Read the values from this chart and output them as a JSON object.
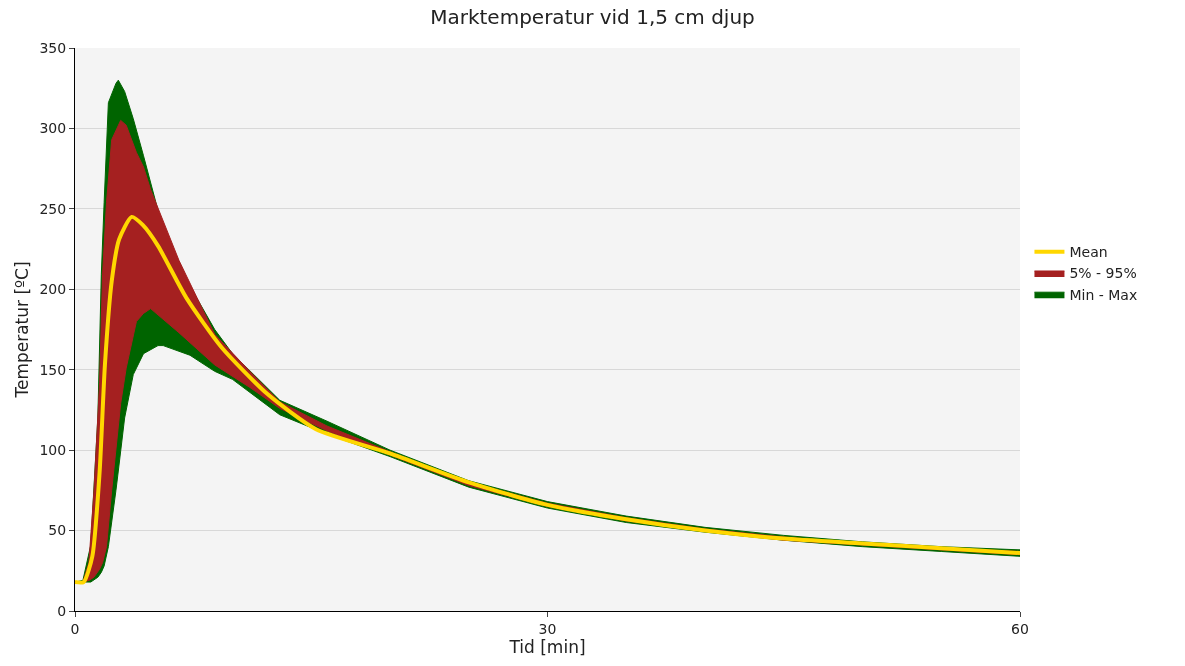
{
  "chart_data": {
    "type": "line",
    "title": "Marktemperatur vid 1,5 cm djup",
    "xlabel": "Tid [min]",
    "ylabel": "Temperatur [ºC]",
    "xlim": [
      0,
      60
    ],
    "xticks": [
      0,
      30,
      60
    ],
    "ylim": [
      0,
      350
    ],
    "yticks": [
      0,
      50,
      100,
      150,
      200,
      250,
      300,
      350
    ],
    "grid": "y",
    "legend": "right",
    "series": [
      {
        "name": "Min - Max",
        "type": "area",
        "color": "#006400",
        "x": [
          0,
          0.5,
          1.0,
          1.45,
          1.67,
          1.85,
          2.12,
          2.6,
          2.75,
          3.15,
          3.7,
          4.35,
          5.27,
          5.6,
          7.3,
          8.87,
          10,
          13,
          16,
          20,
          25,
          30,
          35,
          40,
          45,
          50,
          55,
          60
        ],
        "values": [
          null,
          null,
          null,
          null,
          null,
          null,
          null,
          null,
          null,
          null,
          null,
          null,
          null,
          null,
          null,
          null,
          null,
          null,
          null,
          null,
          null,
          null,
          null,
          null,
          null,
          null,
          null,
          null
        ],
        "upper": [
          18,
          19,
          41,
          120,
          209,
          254,
          316,
          328,
          330,
          323,
          306,
          283,
          249,
          238,
          202,
          175,
          160,
          131,
          118,
          100,
          81,
          68,
          59,
          52,
          47,
          43,
          40,
          38
        ],
        "lower": [
          18,
          18,
          18,
          21,
          24,
          28,
          40,
          75,
          87,
          120,
          147,
          160,
          165,
          165,
          159,
          149,
          144,
          122,
          110,
          96,
          77,
          64,
          55,
          49,
          44,
          40,
          37,
          34
        ]
      },
      {
        "name": "5% - 95%",
        "type": "area",
        "color": "#a52020",
        "x": [
          0,
          0.5,
          0.88,
          1.2,
          1.56,
          1.75,
          2.0,
          2.33,
          2.9,
          3.25,
          3.9,
          4.35,
          4.8,
          6.6,
          8.87,
          11.1,
          13,
          16,
          20,
          25,
          30,
          35,
          40,
          45,
          50,
          55,
          60
        ],
        "values": [
          null,
          null,
          null,
          null,
          null,
          null,
          null,
          null,
          null,
          null,
          null,
          null,
          null,
          null,
          null,
          null,
          null,
          null,
          null,
          null,
          null,
          null,
          null,
          null,
          null,
          null,
          null
        ],
        "upper": [
          18,
          18,
          30,
          74,
          142,
          209,
          254,
          293,
          305,
          302,
          285,
          276,
          262,
          218,
          172,
          149,
          130,
          115,
          99,
          80,
          67,
          58,
          51,
          46,
          42,
          39,
          37
        ],
        "lower": [
          18,
          18,
          19,
          21,
          26,
          30,
          40,
          75,
          129,
          151,
          180,
          185,
          188,
          173,
          153,
          139,
          126,
          112,
          97,
          78,
          65,
          56,
          50,
          44,
          41,
          38,
          35
        ]
      },
      {
        "name": "Mean",
        "color": "#ffd700",
        "x": [
          0,
          0.55,
          1.1,
          1.56,
          1.9,
          2.33,
          2.8,
          3.6,
          4.3,
          5.27,
          7.05,
          9.3,
          12.2,
          15.3,
          20,
          25,
          30,
          35,
          40,
          45,
          50,
          55,
          60
        ],
        "values": [
          18,
          18,
          34,
          86,
          153,
          205,
          231,
          245,
          240,
          227,
          195,
          164,
          135,
          113,
          98,
          80,
          66,
          57,
          50,
          45,
          42,
          39,
          36
        ]
      }
    ]
  }
}
